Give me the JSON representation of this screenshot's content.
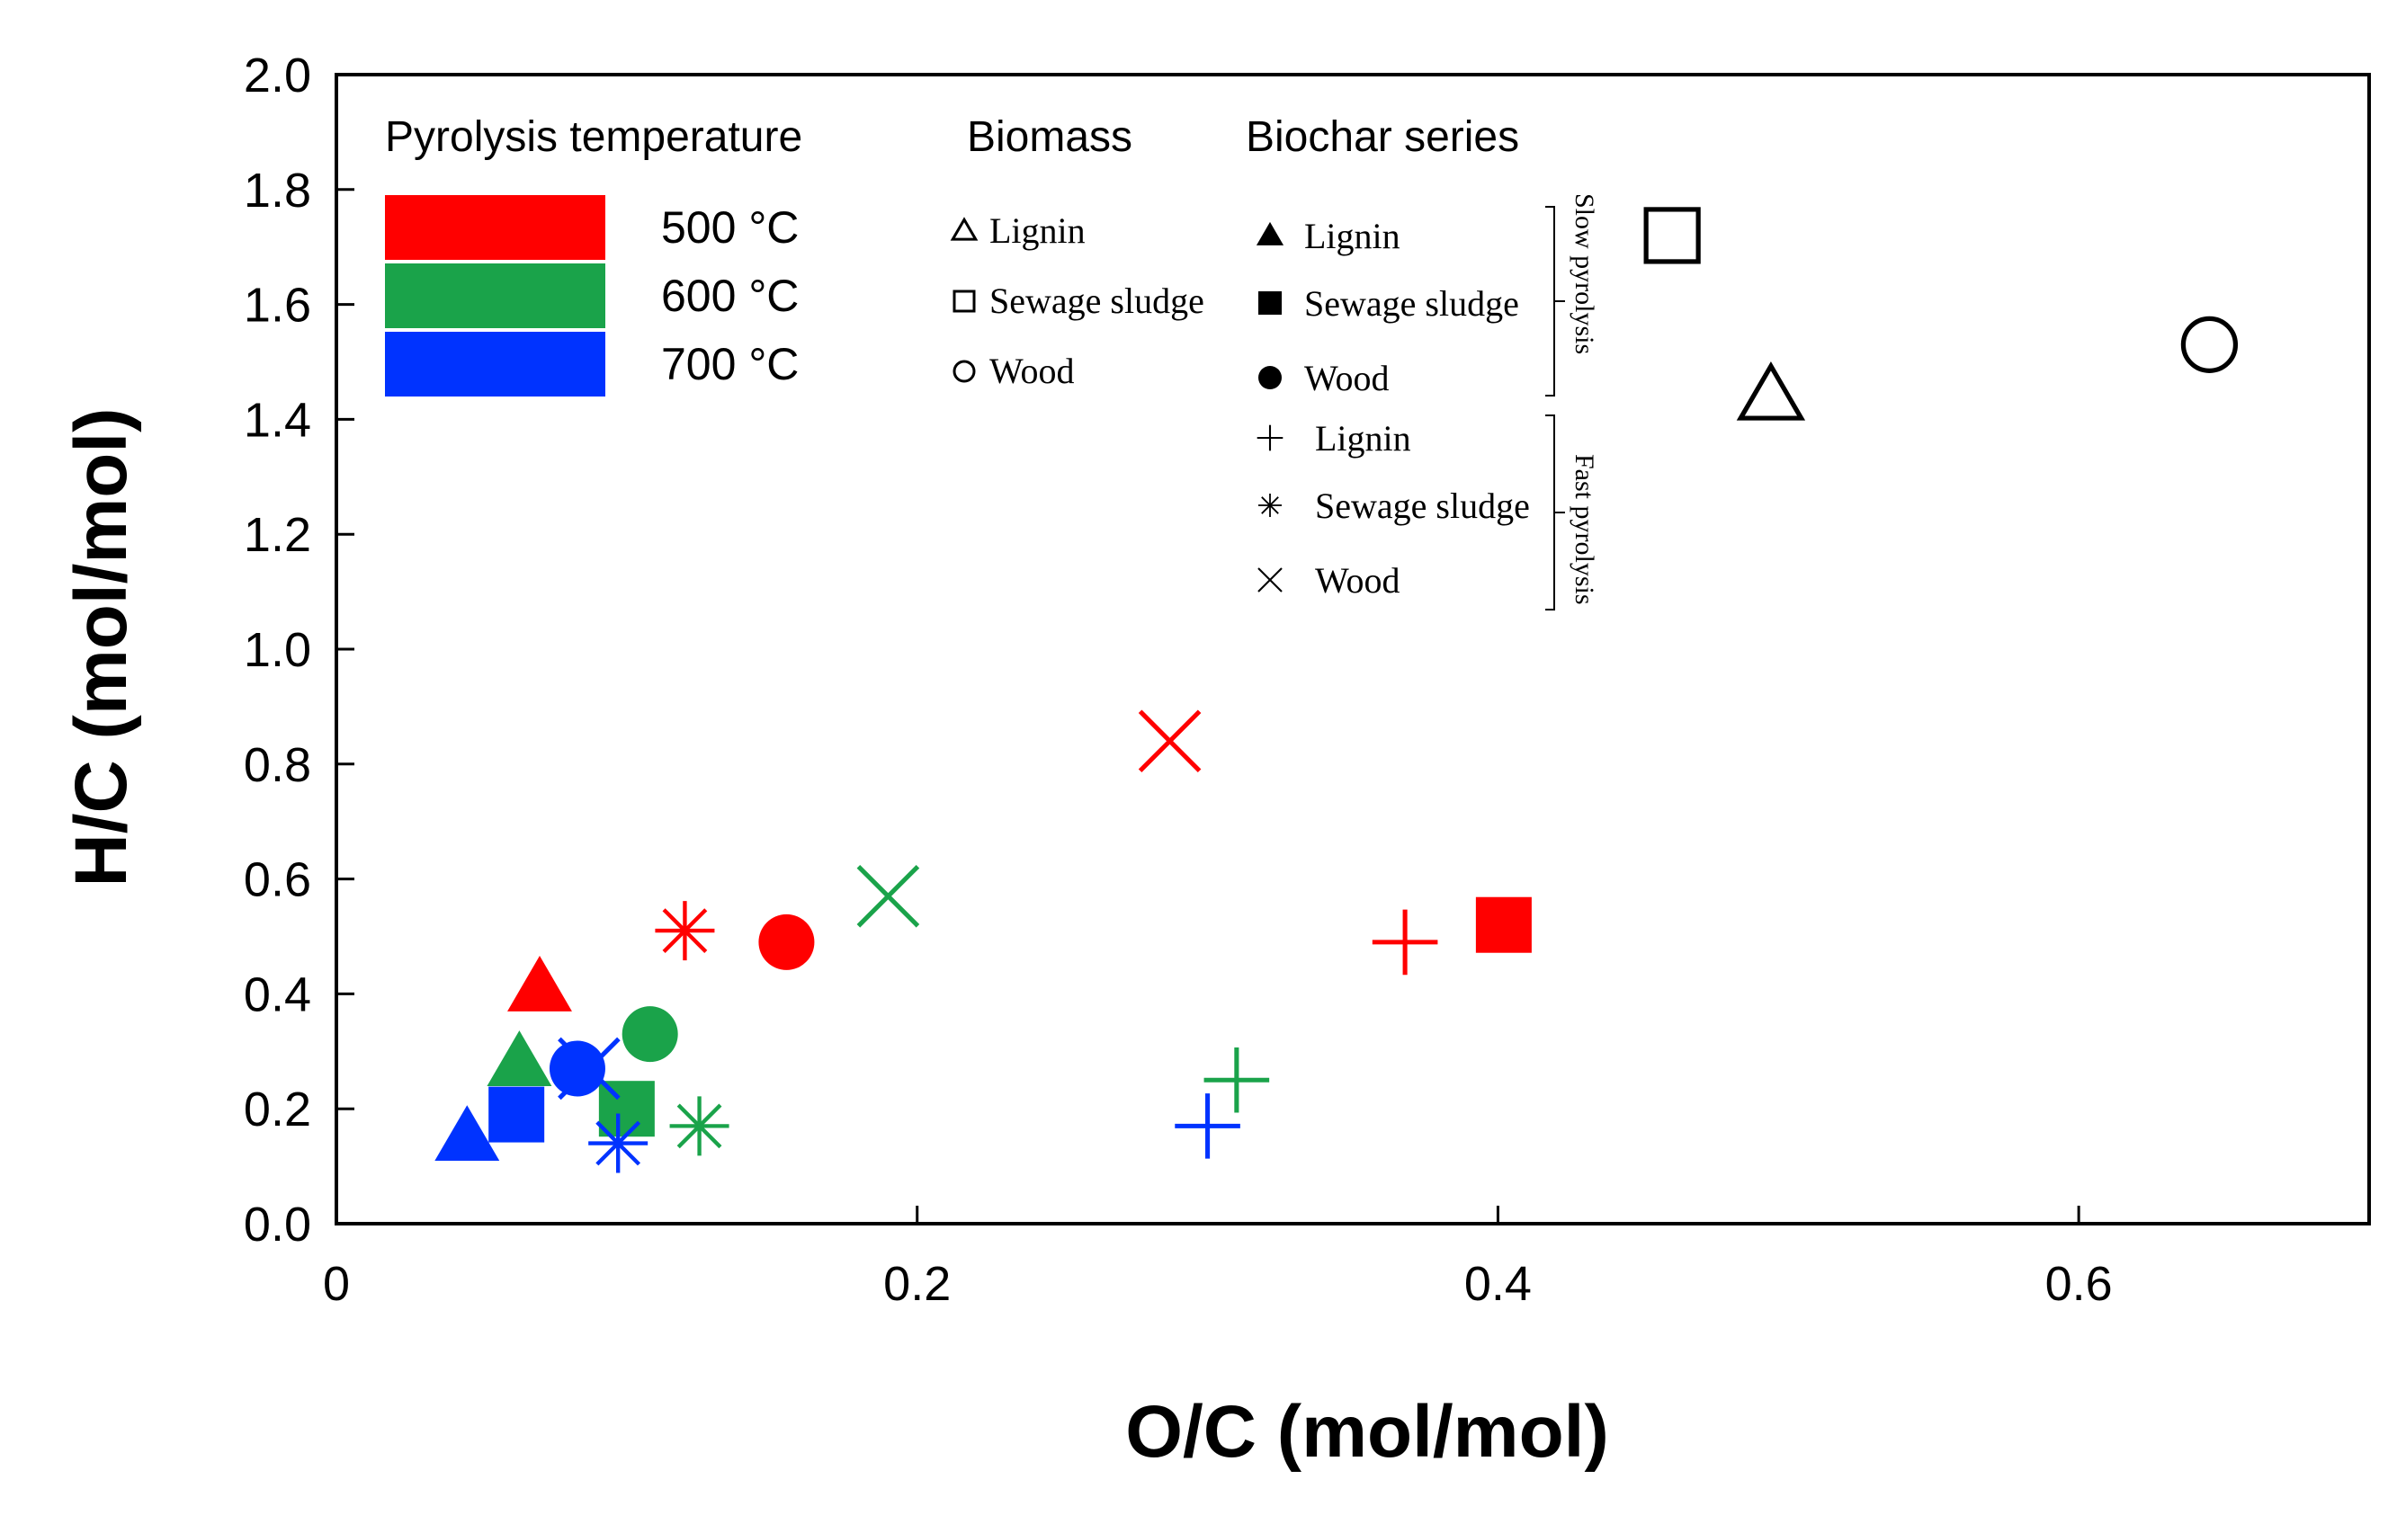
{
  "chart_data": {
    "type": "scatter",
    "xlabel": "O/C (mol/mol)",
    "ylabel": "H/C (mol/mol)",
    "xlim": [
      0,
      0.7
    ],
    "ylim": [
      0,
      2.0
    ],
    "x_ticks": [
      0,
      0.2,
      0.4,
      0.6
    ],
    "x_tick_labels": [
      "0",
      "0.2",
      "0.4",
      "0.6"
    ],
    "y_ticks": [
      0,
      0.2,
      0.4,
      0.6,
      0.8,
      1.0,
      1.2,
      1.4,
      1.6,
      1.8,
      2.0
    ],
    "y_tick_labels": [
      "0.0",
      "0.2",
      "0.4",
      "0.6",
      "0.8",
      "1.0",
      "1.2",
      "1.4",
      "1.6",
      "1.8",
      "2.0"
    ],
    "grid": false,
    "legend_placement": "top-left inside plot",
    "colors": {
      "500": "#ff0000",
      "600": "#1aa34a",
      "700": "#0033ff",
      "biomass": "#000000"
    },
    "legend": {
      "temperature_title": "Pyrolysis temperature",
      "temperatures": [
        {
          "label": "500 °C",
          "color": "#ff0000"
        },
        {
          "label": "600 °C",
          "color": "#1aa34a"
        },
        {
          "label": "700 °C",
          "color": "#0033ff"
        }
      ],
      "biomass_title": "Biomass",
      "biomass": [
        {
          "label": "Lignin",
          "marker": "open-triangle"
        },
        {
          "label": "Sewage sludge",
          "marker": "open-square"
        },
        {
          "label": "Wood",
          "marker": "open-circle"
        }
      ],
      "biochar_title": "Biochar series",
      "biochar": [
        {
          "label": "Lignin",
          "marker": "filled-triangle"
        },
        {
          "label": "Sewage sludge",
          "marker": "filled-square"
        },
        {
          "label": "Wood",
          "marker": "filled-circle"
        },
        {
          "label": "Lignin",
          "marker": "plus"
        },
        {
          "label": "Sewage sludge",
          "marker": "asterisk"
        },
        {
          "label": "Wood",
          "marker": "x"
        }
      ],
      "bracket_slow": "Slow pyrolysis",
      "bracket_fast": "Fast pyrolysis"
    },
    "points": [
      {
        "x": 0.46,
        "y": 1.72,
        "marker": "open-square",
        "color": "#000000"
      },
      {
        "x": 0.494,
        "y": 1.44,
        "marker": "open-triangle",
        "color": "#000000"
      },
      {
        "x": 0.645,
        "y": 1.53,
        "marker": "open-circle",
        "color": "#000000"
      },
      {
        "x": 0.287,
        "y": 0.84,
        "marker": "x",
        "color": "#ff0000"
      },
      {
        "x": 0.12,
        "y": 0.51,
        "marker": "asterisk",
        "color": "#ff0000"
      },
      {
        "x": 0.155,
        "y": 0.49,
        "marker": "filled-circle",
        "color": "#ff0000"
      },
      {
        "x": 0.07,
        "y": 0.41,
        "marker": "filled-triangle",
        "color": "#ff0000"
      },
      {
        "x": 0.368,
        "y": 0.49,
        "marker": "plus",
        "color": "#ff0000"
      },
      {
        "x": 0.402,
        "y": 0.52,
        "marker": "filled-square",
        "color": "#ff0000"
      },
      {
        "x": 0.19,
        "y": 0.57,
        "marker": "x",
        "color": "#1aa34a"
      },
      {
        "x": 0.108,
        "y": 0.33,
        "marker": "filled-circle",
        "color": "#1aa34a"
      },
      {
        "x": 0.063,
        "y": 0.28,
        "marker": "filled-triangle",
        "color": "#1aa34a"
      },
      {
        "x": 0.1,
        "y": 0.2,
        "marker": "filled-square",
        "color": "#1aa34a"
      },
      {
        "x": 0.125,
        "y": 0.17,
        "marker": "asterisk",
        "color": "#1aa34a"
      },
      {
        "x": 0.31,
        "y": 0.25,
        "marker": "plus",
        "color": "#1aa34a"
      },
      {
        "x": 0.087,
        "y": 0.27,
        "marker": "x",
        "color": "#0033ff"
      },
      {
        "x": 0.083,
        "y": 0.27,
        "marker": "filled-circle",
        "color": "#0033ff"
      },
      {
        "x": 0.062,
        "y": 0.19,
        "marker": "filled-square",
        "color": "#0033ff"
      },
      {
        "x": 0.045,
        "y": 0.15,
        "marker": "filled-triangle",
        "color": "#0033ff"
      },
      {
        "x": 0.097,
        "y": 0.14,
        "marker": "asterisk",
        "color": "#0033ff"
      },
      {
        "x": 0.3,
        "y": 0.17,
        "marker": "plus",
        "color": "#0033ff"
      }
    ]
  }
}
